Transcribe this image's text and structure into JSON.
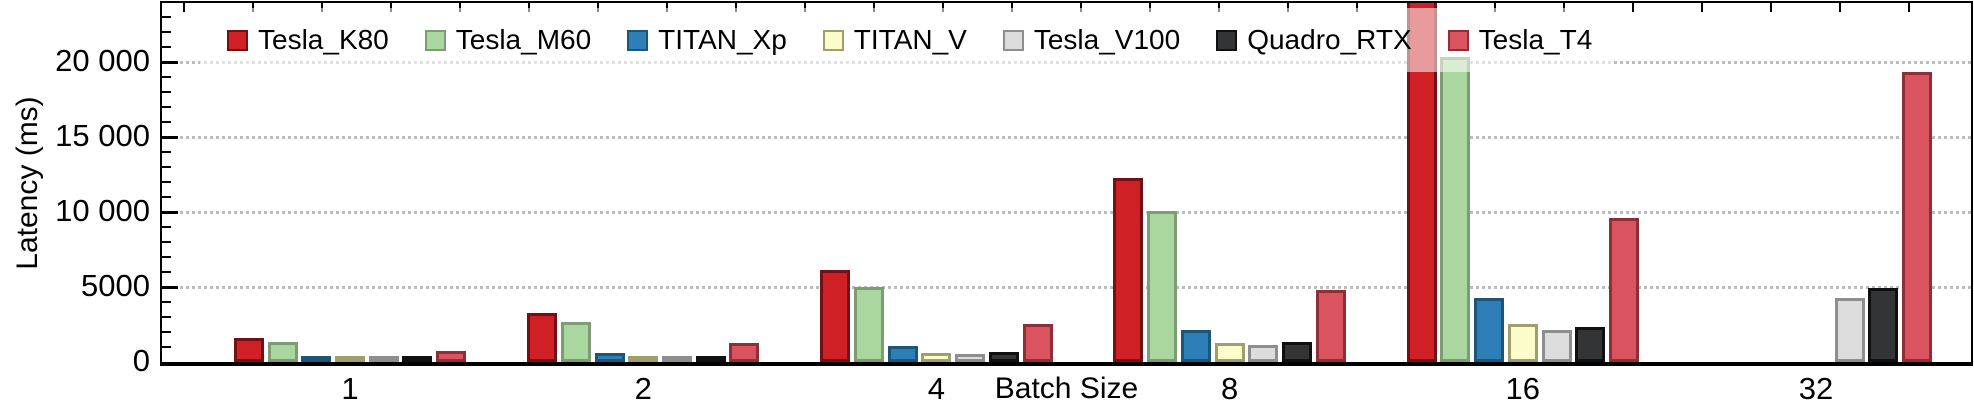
{
  "chart_data": {
    "type": "bar",
    "title": "",
    "xlabel": "Batch Size",
    "ylabel": "Latency (ms)",
    "categories": [
      "1",
      "2",
      "4",
      "8",
      "16",
      "32"
    ],
    "series": [
      {
        "name": "Tesla_K80",
        "fill": "#cf2026",
        "border": "#731015",
        "values": [
          1600,
          3250,
          6150,
          12250,
          24500,
          null
        ]
      },
      {
        "name": "Tesla_M60",
        "fill": "#aad69f",
        "border": "#7e9b74",
        "values": [
          1350,
          2650,
          5000,
          10050,
          20300,
          null
        ]
      },
      {
        "name": "TITAN_Xp",
        "fill": "#2e7fb8",
        "border": "#1c5677",
        "values": [
          350,
          600,
          1050,
          2150,
          4250,
          null
        ]
      },
      {
        "name": "TITAN_V",
        "fill": "#fcfccb",
        "border": "#9e9f6a",
        "values": [
          270,
          400,
          600,
          1250,
          2500,
          null
        ]
      },
      {
        "name": "Tesla_V100",
        "fill": "#dcdcdc",
        "border": "#8e8e8e",
        "values": [
          220,
          330,
          520,
          1100,
          2150,
          4250
        ]
      },
      {
        "name": "Quadro_RTX",
        "fill": "#333436",
        "border": "#101010",
        "values": [
          280,
          420,
          650,
          1300,
          2350,
          4900
        ]
      },
      {
        "name": "Tesla_T4",
        "fill": "#d9545e",
        "border": "#8e2f37",
        "values": [
          700,
          1250,
          2500,
          4800,
          9600,
          19350
        ]
      }
    ],
    "y_ticks": [
      {
        "value": 0,
        "label": "0"
      },
      {
        "value": 5000,
        "label": "5000"
      },
      {
        "value": 10000,
        "label": "10 000"
      },
      {
        "value": 15000,
        "label": "15 000"
      },
      {
        "value": 20000,
        "label": "20 000"
      }
    ],
    "ylim": [
      0,
      23900
    ],
    "grid": "horizontal-dotted",
    "legend_position": "top-inside",
    "notes": "Tesla_K80 bar at batch size 16 is clipped at the top of the plot range; Tesla_K80, Tesla_M60, TITAN_Xp and TITAN_V have no bars at batch size 32."
  }
}
